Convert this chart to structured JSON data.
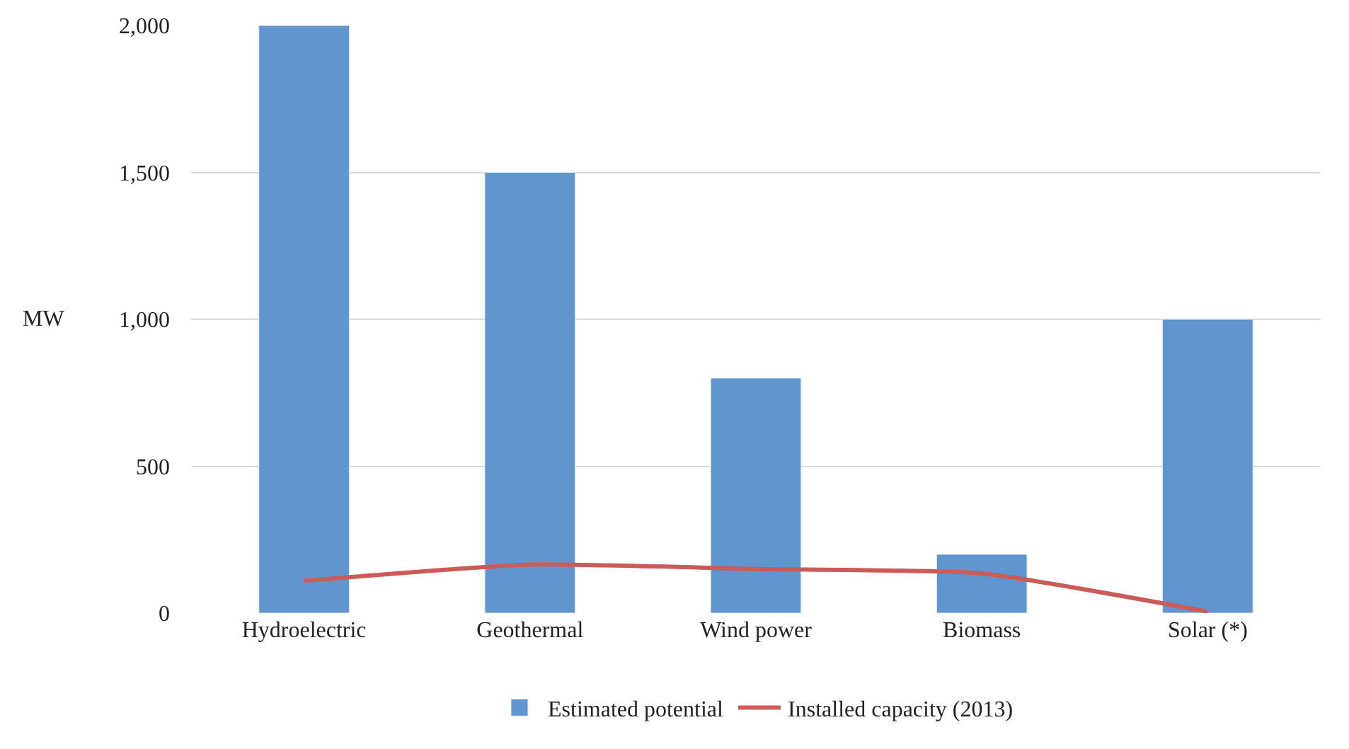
{
  "chart_data": {
    "type": "bar",
    "ylabel": "MW",
    "categories": [
      "Hydroelectric",
      "Geothermal",
      "Wind power",
      "Biomass",
      "Solar (*)"
    ],
    "series": [
      {
        "name": "Estimated potential",
        "color": "#6095cf",
        "values": [
          2000,
          1500,
          800,
          200,
          1000
        ]
      },
      {
        "name": "Installed capacity (2013)",
        "type": "line",
        "color": "#cb5b57",
        "values": [
          110,
          165,
          150,
          135,
          5
        ]
      }
    ],
    "ylim": [
      0,
      2000
    ],
    "yticks": [
      {
        "value": 0,
        "label": "0"
      },
      {
        "value": 500,
        "label": "500"
      },
      {
        "value": 1000,
        "label": "1,000"
      },
      {
        "value": 1500,
        "label": "1,500"
      },
      {
        "value": 2000,
        "label": "2,000"
      }
    ],
    "grid": "y",
    "legend": "bottom",
    "marker": "none",
    "line_style": "solid"
  }
}
